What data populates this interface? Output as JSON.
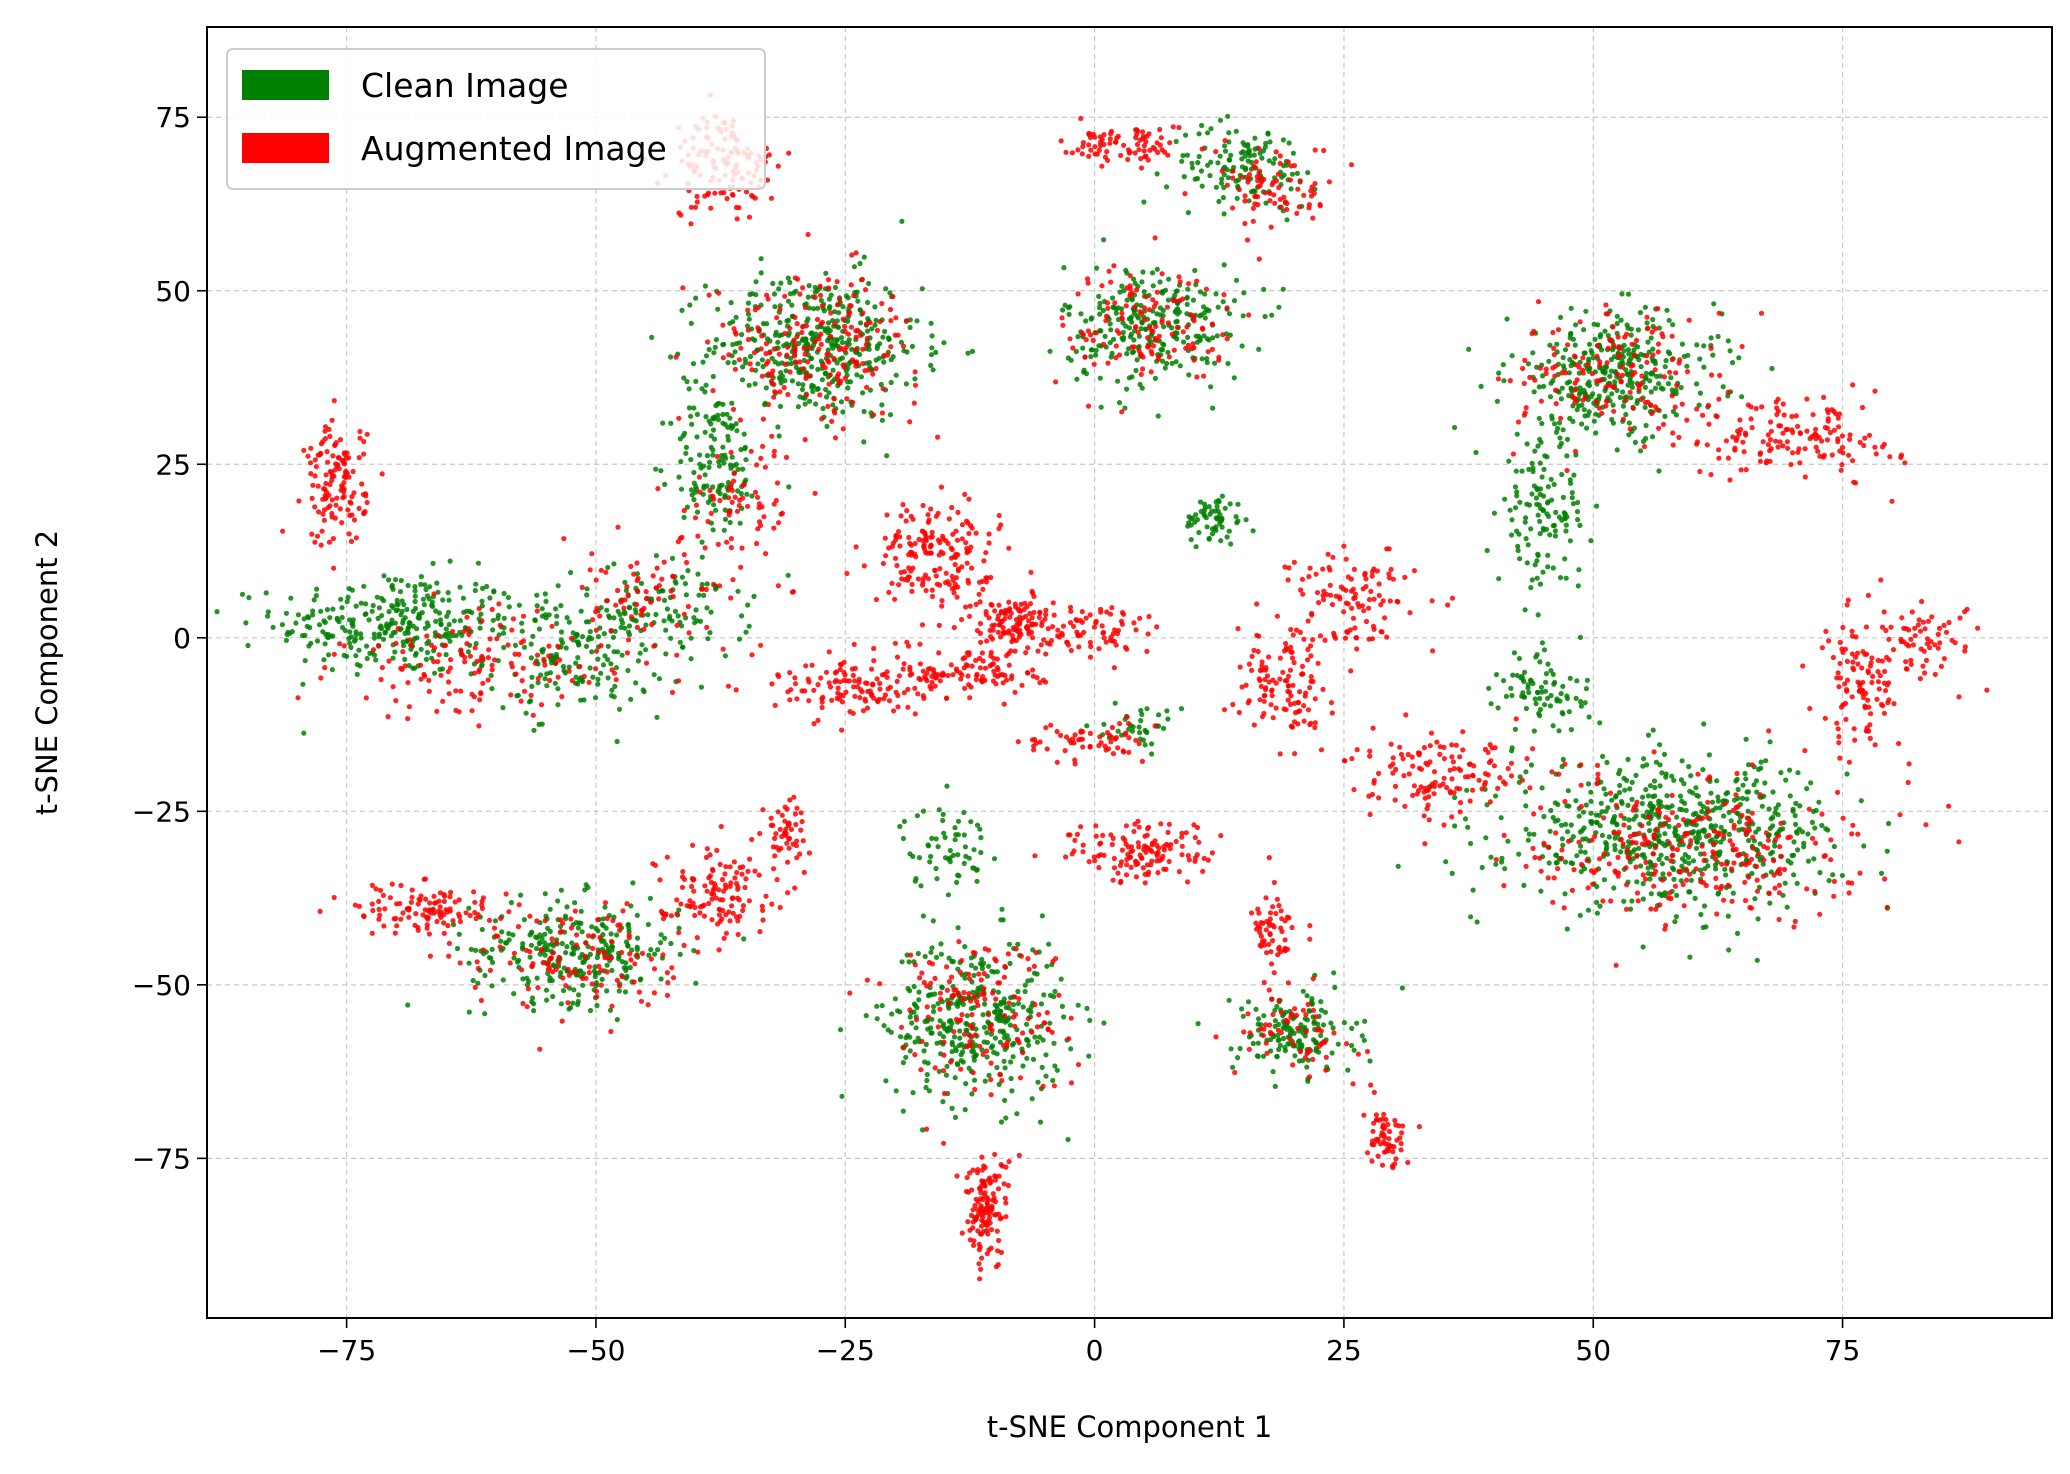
{
  "chart_data": {
    "type": "scatter",
    "title": "",
    "xlabel": "t-SNE Component 1",
    "ylabel": "t-SNE Component 2",
    "xlim": [
      -89,
      96
    ],
    "ylim": [
      -98,
      88
    ],
    "xticks": [
      -75,
      -50,
      -25,
      0,
      25,
      50,
      75
    ],
    "yticks": [
      -75,
      -50,
      -25,
      0,
      25,
      50,
      75
    ],
    "grid": true,
    "legend_position": "top-left",
    "series": [
      {
        "name": "Clean Image",
        "color": "#008000",
        "clusters": [
          {
            "cx": -70,
            "cy": 2,
            "sx": 8,
            "sy": 5,
            "n": 300
          },
          {
            "cx": -52,
            "cy": -2,
            "sx": 6,
            "sy": 6,
            "n": 180
          },
          {
            "cx": -42,
            "cy": 4,
            "sx": 5,
            "sy": 5,
            "n": 90
          },
          {
            "cx": -28,
            "cy": 42,
            "sx": 7,
            "sy": 7,
            "n": 420
          },
          {
            "cx": -38,
            "cy": 25,
            "sx": 3,
            "sy": 7,
            "n": 130
          },
          {
            "cx": -52,
            "cy": -45,
            "sx": 7,
            "sy": 5,
            "n": 280
          },
          {
            "cx": -12,
            "cy": -55,
            "sx": 6,
            "sy": 8,
            "n": 370
          },
          {
            "cx": -15,
            "cy": -30,
            "sx": 3,
            "sy": 4,
            "n": 60
          },
          {
            "cx": 6,
            "cy": 45,
            "sx": 6,
            "sy": 6,
            "n": 260
          },
          {
            "cx": 15,
            "cy": 68,
            "sx": 5,
            "sy": 4,
            "n": 130
          },
          {
            "cx": 12,
            "cy": 17,
            "sx": 2,
            "sy": 2.5,
            "n": 60
          },
          {
            "cx": 20,
            "cy": -57,
            "sx": 4,
            "sy": 4,
            "n": 150
          },
          {
            "cx": 5,
            "cy": -13,
            "sx": 2.5,
            "sy": 2,
            "n": 35
          },
          {
            "cx": 52,
            "cy": 38,
            "sx": 7,
            "sy": 6,
            "n": 340
          },
          {
            "cx": 45,
            "cy": 18,
            "sx": 3,
            "sy": 7,
            "n": 130
          },
          {
            "cx": 58,
            "cy": -28,
            "sx": 11,
            "sy": 7,
            "n": 620
          },
          {
            "cx": 45,
            "cy": -8,
            "sx": 3,
            "sy": 4,
            "n": 80
          }
        ]
      },
      {
        "name": "Augmented Image",
        "color": "#ff0000",
        "clusters": [
          {
            "cx": -76,
            "cy": 22,
            "sx": 2,
            "sy": 6,
            "n": 130
          },
          {
            "cx": -62,
            "cy": -4,
            "sx": 9,
            "sy": 5,
            "n": 140
          },
          {
            "cx": -45,
            "cy": 5,
            "sx": 6,
            "sy": 6,
            "n": 80
          },
          {
            "cx": -37,
            "cy": 68,
            "sx": 3.5,
            "sy": 5,
            "n": 130
          },
          {
            "cx": -28,
            "cy": 42,
            "sx": 7,
            "sy": 7,
            "n": 200
          },
          {
            "cx": -35,
            "cy": 20,
            "sx": 4,
            "sy": 6,
            "n": 70
          },
          {
            "cx": -16,
            "cy": 12,
            "sx": 4,
            "sy": 5,
            "n": 180
          },
          {
            "cx": -8,
            "cy": 2,
            "sx": 3,
            "sy": 3,
            "n": 110
          },
          {
            "cx": -25,
            "cy": -7,
            "sx": 5,
            "sy": 3,
            "n": 120
          },
          {
            "cx": -12,
            "cy": -5,
            "sx": 5,
            "sy": 2.5,
            "n": 110
          },
          {
            "cx": 0,
            "cy": 1,
            "sx": 5,
            "sy": 3,
            "n": 80
          },
          {
            "cx": -67,
            "cy": -39,
            "sx": 5,
            "sy": 2.5,
            "n": 110
          },
          {
            "cx": -52,
            "cy": -46,
            "sx": 7,
            "sy": 5,
            "n": 130
          },
          {
            "cx": -38,
            "cy": -36,
            "sx": 4,
            "sy": 4,
            "n": 120
          },
          {
            "cx": -31,
            "cy": -28,
            "sx": 1.5,
            "sy": 3,
            "n": 50
          },
          {
            "cx": -12,
            "cy": -54,
            "sx": 6,
            "sy": 8,
            "n": 150
          },
          {
            "cx": -11,
            "cy": -82,
            "sx": 1.5,
            "sy": 5,
            "n": 130
          },
          {
            "cx": 5,
            "cy": -31,
            "sx": 5,
            "sy": 3,
            "n": 130
          },
          {
            "cx": -1,
            "cy": -15,
            "sx": 4,
            "sy": 2,
            "n": 60
          },
          {
            "cx": 3,
            "cy": 71,
            "sx": 4,
            "sy": 2,
            "n": 80
          },
          {
            "cx": 6,
            "cy": 45,
            "sx": 6,
            "sy": 6,
            "n": 130
          },
          {
            "cx": 18,
            "cy": 65,
            "sx": 4,
            "sy": 4,
            "n": 80
          },
          {
            "cx": 18,
            "cy": -43,
            "sx": 1.5,
            "sy": 4,
            "n": 60
          },
          {
            "cx": 20,
            "cy": -57,
            "sx": 4,
            "sy": 4,
            "n": 60
          },
          {
            "cx": 29,
            "cy": -72,
            "sx": 1.5,
            "sy": 3,
            "n": 60
          },
          {
            "cx": 26,
            "cy": 6,
            "sx": 4,
            "sy": 5,
            "n": 110
          },
          {
            "cx": 19,
            "cy": -7,
            "sx": 3,
            "sy": 5,
            "n": 120
          },
          {
            "cx": 35,
            "cy": -20,
            "sx": 6,
            "sy": 4,
            "n": 130
          },
          {
            "cx": 52,
            "cy": 38,
            "sx": 7,
            "sy": 6,
            "n": 150
          },
          {
            "cx": 60,
            "cy": -30,
            "sx": 11,
            "sy": 7,
            "n": 280
          },
          {
            "cx": 70,
            "cy": 29,
            "sx": 7,
            "sy": 4,
            "n": 150
          },
          {
            "cx": 77,
            "cy": -6,
            "sx": 3,
            "sy": 7,
            "n": 110
          },
          {
            "cx": 84,
            "cy": 0,
            "sx": 3,
            "sy": 4,
            "n": 60
          }
        ]
      }
    ]
  }
}
